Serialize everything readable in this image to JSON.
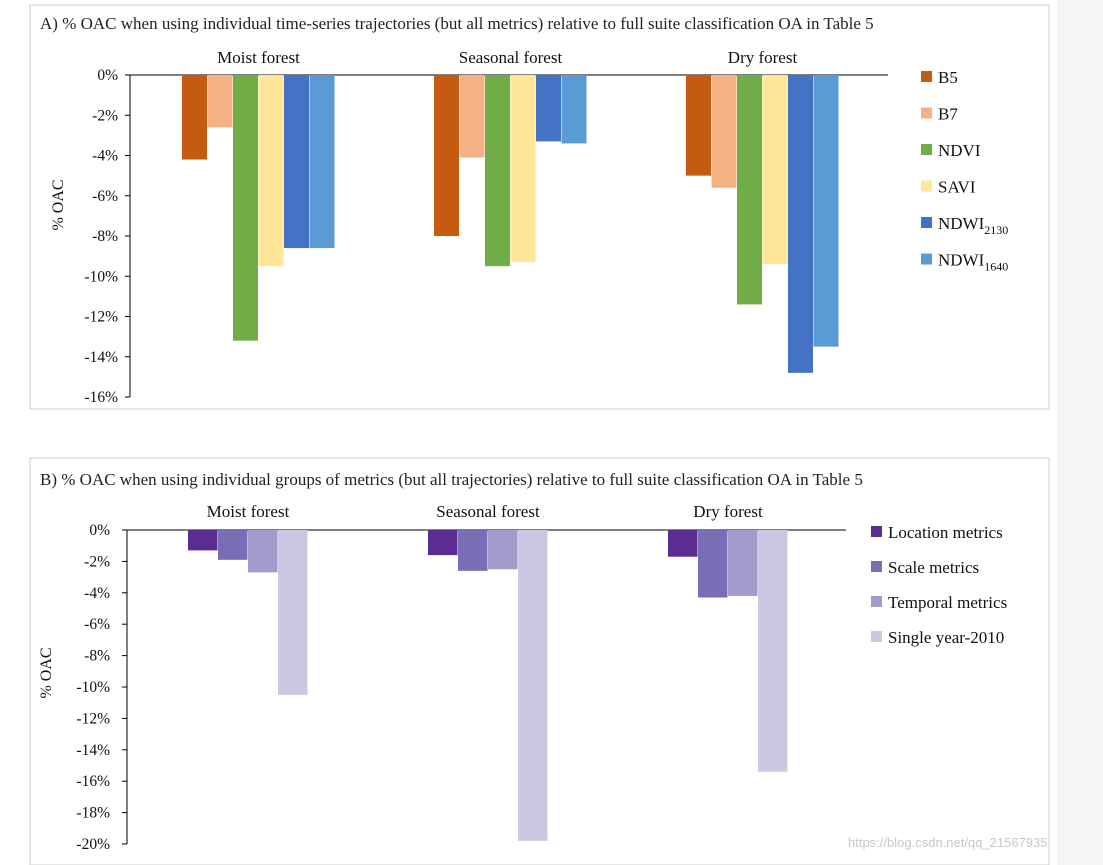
{
  "watermark": "https://blog.csdn.net/qq_21567935",
  "chart_data": [
    {
      "type": "bar",
      "title": "A) % OAC when using individual time-series trajectories (but all metrics) relative to full suite classification OA in Table 5",
      "ylabel": "% OAC",
      "xlabel": "",
      "ylim": [
        -16,
        0
      ],
      "yticks": [
        0,
        -2,
        -4,
        -6,
        -8,
        -10,
        -12,
        -14,
        -16
      ],
      "ytick_labels": [
        "0%",
        "-2%",
        "-4%",
        "-6%",
        "-8%",
        "-10%",
        "-12%",
        "-14%",
        "-16%"
      ],
      "categories": [
        "Moist forest",
        "Seasonal forest",
        "Dry forest"
      ],
      "legend_position": "right",
      "series": [
        {
          "name": "B5",
          "label": "B5",
          "sub": "",
          "color": "#c55a11",
          "values": [
            -4.2,
            -8.0,
            -5.0
          ]
        },
        {
          "name": "B7",
          "label": "B7",
          "sub": "",
          "color": "#f4b183",
          "values": [
            -2.6,
            -4.1,
            -5.6
          ]
        },
        {
          "name": "NDVI",
          "label": "NDVI",
          "sub": "",
          "color": "#70ad47",
          "values": [
            -13.2,
            -9.5,
            -11.4
          ]
        },
        {
          "name": "SAVI",
          "label": "SAVI",
          "sub": "",
          "color": "#ffe699",
          "values": [
            -9.5,
            -9.3,
            -9.4
          ]
        },
        {
          "name": "NDWI2130",
          "label": "NDWI",
          "sub": "2130",
          "color": "#4472c4",
          "values": [
            -8.6,
            -3.3,
            -14.8
          ]
        },
        {
          "name": "NDWI1640",
          "label": "NDWI",
          "sub": "1640",
          "color": "#5b9bd5",
          "values": [
            -8.6,
            -3.4,
            -13.5
          ]
        }
      ]
    },
    {
      "type": "bar",
      "title": "B) % OAC when using individual groups of metrics (but all trajectories)  relative to full suite classification OA in Table 5",
      "ylabel": "% OAC",
      "xlabel": "",
      "ylim": [
        -20,
        0
      ],
      "yticks": [
        0,
        -2,
        -4,
        -6,
        -8,
        -10,
        -12,
        -14,
        -16,
        -18,
        -20
      ],
      "ytick_labels": [
        "0%",
        "-2%",
        "-4%",
        "-6%",
        "-8%",
        "-10%",
        "-12%",
        "-14%",
        "-16%",
        "-18%",
        "-20%"
      ],
      "categories": [
        "Moist forest",
        "Seasonal forest",
        "Dry forest"
      ],
      "legend_position": "right",
      "series": [
        {
          "name": "Location metrics",
          "label": "Location metrics",
          "sub": "",
          "color": "#5b2c91",
          "values": [
            -1.3,
            -1.6,
            -1.7
          ]
        },
        {
          "name": "Scale metrics",
          "label": "Scale metrics",
          "sub": "",
          "color": "#7b6db5",
          "values": [
            -1.9,
            -2.6,
            -4.3
          ]
        },
        {
          "name": "Temporal metrics",
          "label": "Temporal metrics",
          "sub": "",
          "color": "#a29bcb",
          "values": [
            -2.7,
            -2.5,
            -4.2
          ]
        },
        {
          "name": "Single year-2010",
          "label": "Single year-2010",
          "sub": "",
          "color": "#cbc8e3",
          "values": [
            -10.5,
            -19.8,
            -15.4
          ]
        }
      ]
    }
  ]
}
